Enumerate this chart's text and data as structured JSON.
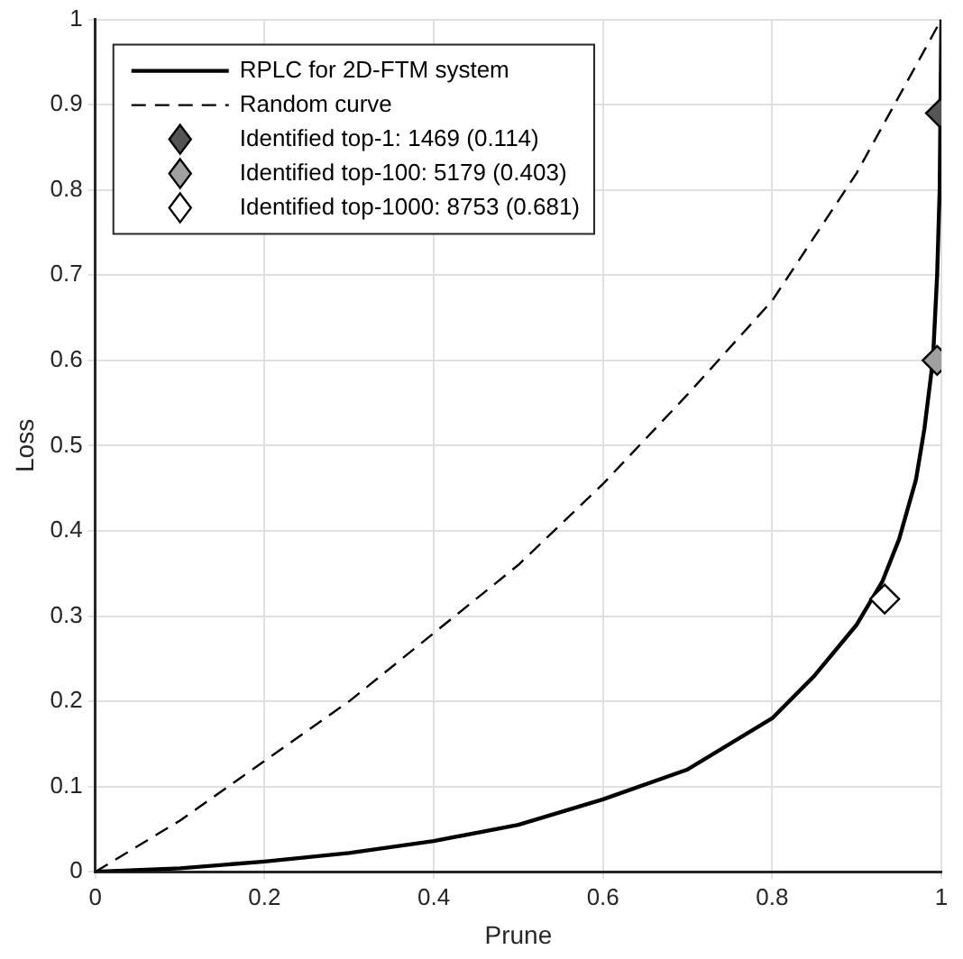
{
  "chart_data": {
    "type": "line",
    "xlabel": "Prune",
    "ylabel": "Loss",
    "xlim": [
      0,
      1
    ],
    "ylim": [
      0,
      1
    ],
    "xticks": [
      0,
      0.2,
      0.4,
      0.6,
      0.8,
      1
    ],
    "yticks": [
      0,
      0.1,
      0.2,
      0.3,
      0.4,
      0.5,
      0.6,
      0.7,
      0.8,
      0.9,
      1
    ],
    "grid": true,
    "legend": "top left",
    "series": [
      {
        "name": "RPLC for 2D-FTM system",
        "color": "#000000",
        "line_style": "solid",
        "marker": "none",
        "x": [
          0,
          0.1,
          0.2,
          0.3,
          0.4,
          0.5,
          0.6,
          0.7,
          0.8,
          0.85,
          0.9,
          0.93,
          0.95,
          0.97,
          0.98,
          0.99,
          0.995,
          0.998,
          1
        ],
        "values": [
          0,
          0.004,
          0.012,
          0.022,
          0.036,
          0.055,
          0.085,
          0.12,
          0.18,
          0.23,
          0.29,
          0.34,
          0.39,
          0.46,
          0.52,
          0.6,
          0.7,
          0.8,
          1
        ]
      },
      {
        "name": "Random curve",
        "color": "#000000",
        "line_style": "dashed",
        "marker": "none",
        "x": [
          0,
          0.1,
          0.2,
          0.3,
          0.4,
          0.5,
          0.6,
          0.7,
          0.8,
          0.9,
          1
        ],
        "values": [
          0,
          0.06,
          0.13,
          0.2,
          0.28,
          0.36,
          0.455,
          0.56,
          0.67,
          0.82,
          1
        ]
      },
      {
        "name": "Identified top-1: 1469 (0.114)",
        "type": "scatter",
        "color": "#555555",
        "marker": "diamond",
        "x": [
          0.999
        ],
        "values": [
          0.89
        ]
      },
      {
        "name": "Identified top-100: 5179 (0.403)",
        "type": "scatter",
        "color": "#a0a0a0",
        "marker": "diamond",
        "x": [
          0.995
        ],
        "values": [
          0.6
        ]
      },
      {
        "name": "Identified top-1000: 8753 (0.681)",
        "type": "scatter",
        "color": "#ffffff",
        "marker": "diamond",
        "x": [
          0.933
        ],
        "values": [
          0.32
        ]
      }
    ]
  }
}
